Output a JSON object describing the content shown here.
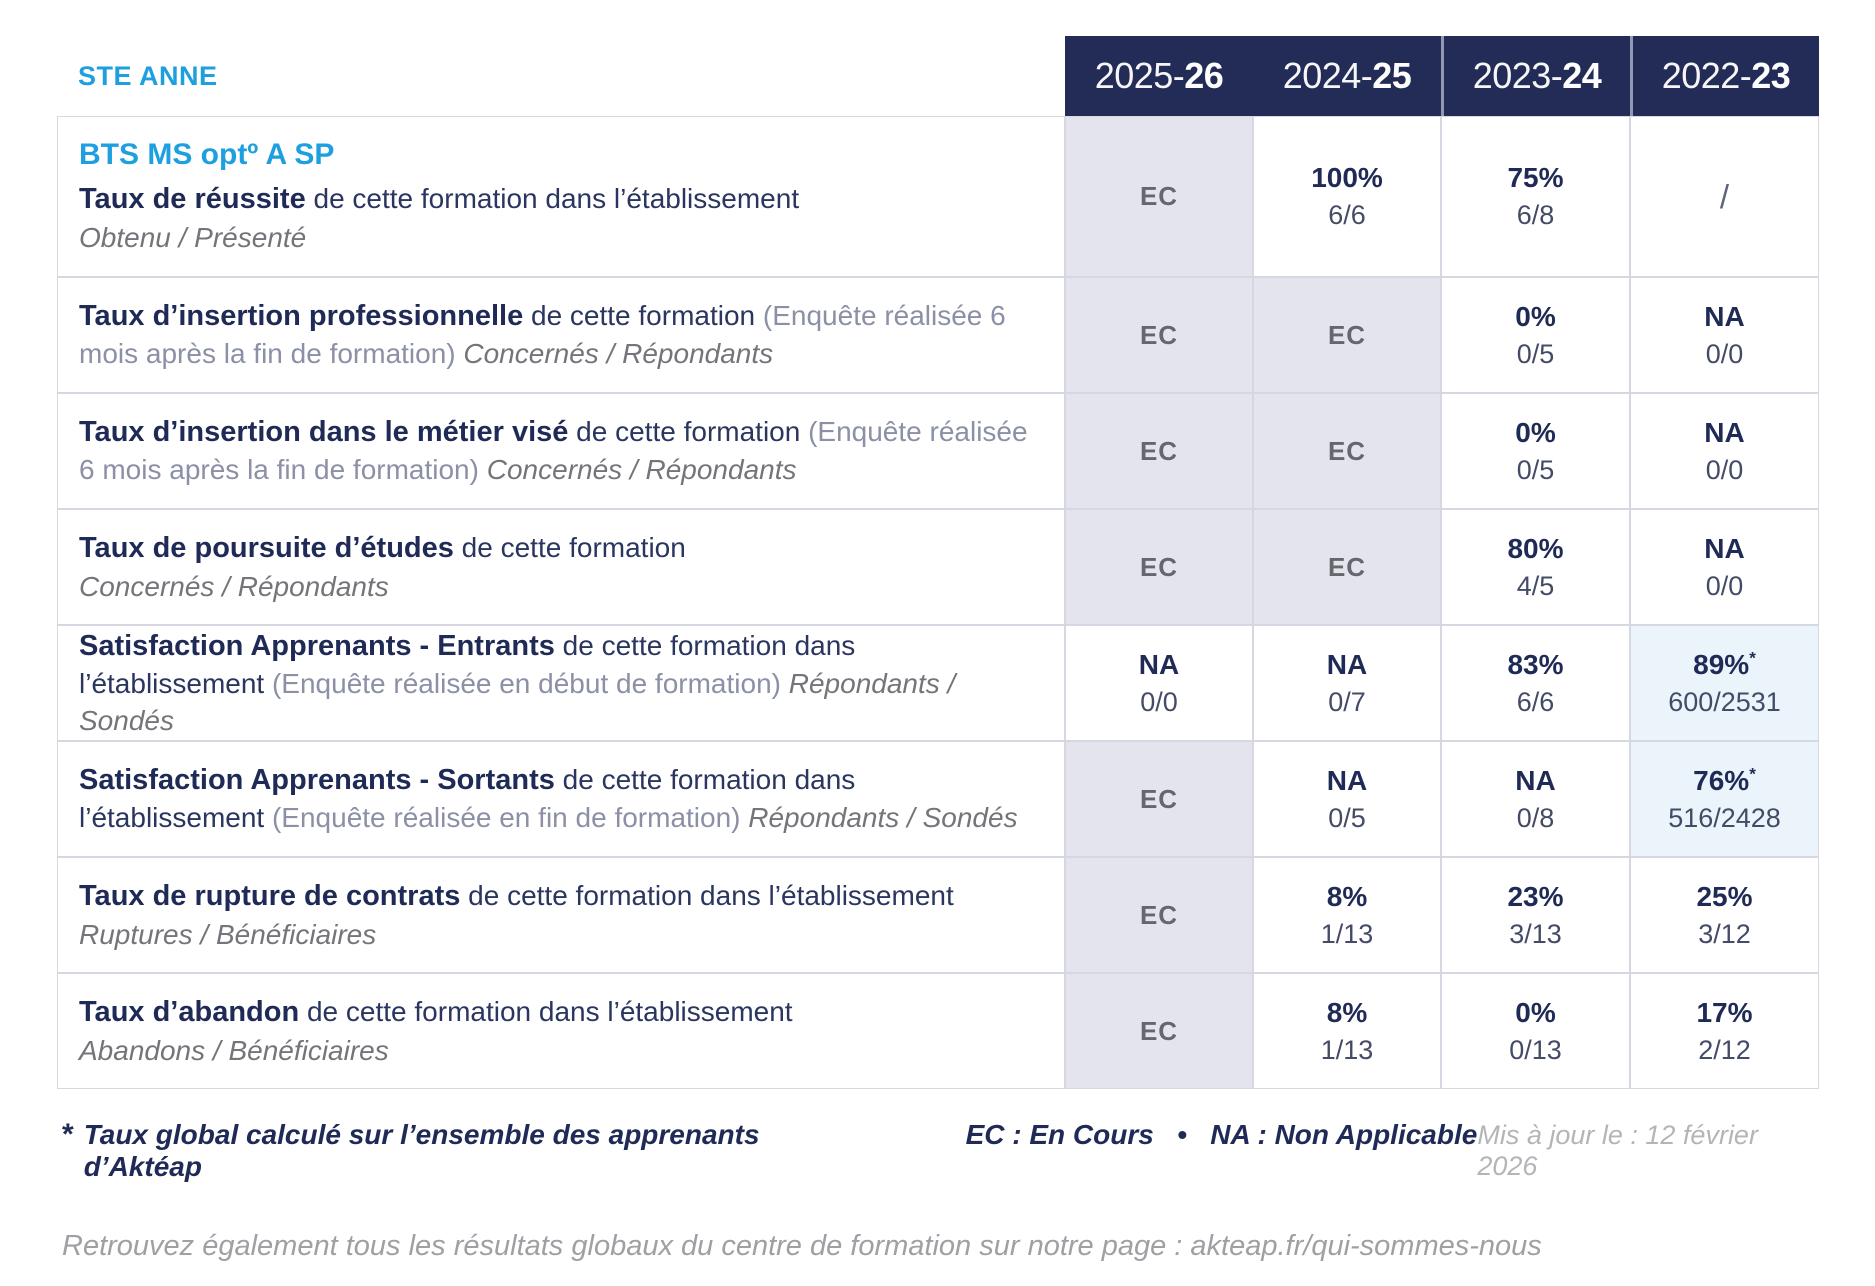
{
  "school": "STE ANNE",
  "program": "BTS MS optº A SP",
  "years": [
    {
      "light": "2025-",
      "bold": "26"
    },
    {
      "light": "2024-",
      "bold": "25"
    },
    {
      "light": "2023-",
      "bold": "24"
    },
    {
      "light": "2022-",
      "bold": "23"
    }
  ],
  "rows": [
    {
      "title": "Taux de réussite",
      "desc": " de cette formation dans l’établissement",
      "sub_block": "Obtenu / Présenté",
      "cells": [
        {
          "v": "EC"
        },
        {
          "v": "100%",
          "f": "6/6"
        },
        {
          "v": "75%",
          "f": "6/8"
        },
        {
          "v": "/"
        }
      ]
    },
    {
      "title": "Taux d’insertion professionnelle",
      "desc": " de cette formation ",
      "paren": "(Enquête réalisée 6 mois après la fin de formation) ",
      "sub_inline": "Concernés / Répondants",
      "cells": [
        {
          "v": "EC"
        },
        {
          "v": "EC"
        },
        {
          "v": "0%",
          "f": "0/5"
        },
        {
          "v": "NA",
          "f": "0/0"
        }
      ]
    },
    {
      "title": "Taux d’insertion dans le métier visé",
      "desc": " de cette formation ",
      "paren": "(Enquête réalisée 6 mois après la fin de formation) ",
      "sub_inline": "Concernés / Répondants",
      "cells": [
        {
          "v": "EC"
        },
        {
          "v": "EC"
        },
        {
          "v": "0%",
          "f": "0/5"
        },
        {
          "v": "NA",
          "f": "0/0"
        }
      ]
    },
    {
      "title": "Taux de poursuite d’études",
      "desc": " de cette formation",
      "sub_block": "Concernés / Répondants",
      "cells": [
        {
          "v": "EC"
        },
        {
          "v": "EC"
        },
        {
          "v": "80%",
          "f": "4/5"
        },
        {
          "v": "NA",
          "f": "0/0"
        }
      ]
    },
    {
      "title": "Satisfaction Apprenants - Entrants",
      "desc": " de cette formation dans l’établissement ",
      "paren": "(Enquête réalisée en début de formation) ",
      "sub_inline": "Répondants / Sondés",
      "cells": [
        {
          "v": "NA",
          "f": "0/0"
        },
        {
          "v": "NA",
          "f": "0/7"
        },
        {
          "v": "83%",
          "f": "6/6"
        },
        {
          "v": "89%",
          "star": "*",
          "f": "600/2531"
        }
      ]
    },
    {
      "title": "Satisfaction Apprenants - Sortants",
      "desc": " de cette formation dans l’établissement ",
      "paren": "(Enquête réalisée en fin de formation) ",
      "sub_inline": "Répondants / Sondés",
      "cells": [
        {
          "v": "EC"
        },
        {
          "v": "NA",
          "f": "0/5"
        },
        {
          "v": "NA",
          "f": "0/8"
        },
        {
          "v": "76%",
          "star": "*",
          "f": "516/2428"
        }
      ]
    },
    {
      "title": "Taux de rupture de contrats",
      "desc": " de cette formation dans l’établissement",
      "sub_block": "Ruptures / Bénéficiaires",
      "cells": [
        {
          "v": "EC"
        },
        {
          "v": "8%",
          "f": "1/13"
        },
        {
          "v": "23%",
          "f": "3/13"
        },
        {
          "v": "25%",
          "f": "3/12"
        }
      ]
    },
    {
      "title": "Taux d’abandon",
      "desc": " de cette formation dans l’établissement",
      "sub_block": "Abandons / Bénéficiaires",
      "cells": [
        {
          "v": "EC"
        },
        {
          "v": "8%",
          "f": "1/13"
        },
        {
          "v": "0%",
          "f": "0/13"
        },
        {
          "v": "17%",
          "f": "2/12"
        }
      ]
    }
  ],
  "footer": {
    "note_star": "*",
    "note_text": "Taux global calculé sur l’ensemble des apprenants d’Aktéap",
    "legend": "EC : En Cours   •   NA : Non Applicable",
    "updated": "Mis à jour le : 12 février 2026",
    "bottom": "Retrouvez également tous les résultats globaux du centre de formation sur notre page : akteap.fr/qui-sommes-nous"
  }
}
